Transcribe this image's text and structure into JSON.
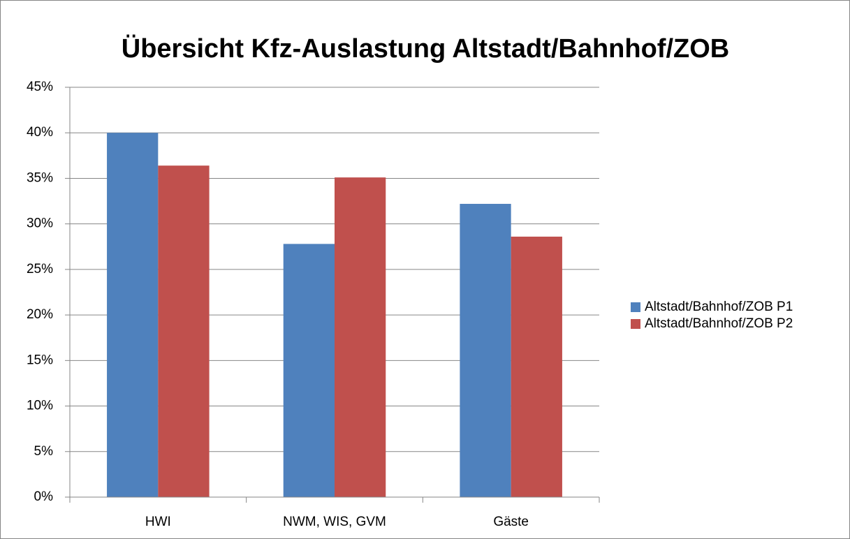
{
  "chart_data": {
    "type": "bar",
    "title": "Übersicht Kfz-Auslastung Altstadt/Bahnhof/ZOB",
    "categories": [
      "HWI",
      "NWM, WIS, GVM",
      "Gäste"
    ],
    "series": [
      {
        "name": "Altstadt/Bahnhof/ZOB P1",
        "color": "#4f81bd",
        "values": [
          40,
          27.8,
          32.2
        ]
      },
      {
        "name": "Altstadt/Bahnhof/ZOB P2",
        "color": "#c0504d",
        "values": [
          36.4,
          35.1,
          28.6
        ]
      }
    ],
    "ylim": [
      0,
      45
    ],
    "yticks": [
      {
        "value": 0,
        "label": "0%"
      },
      {
        "value": 5,
        "label": "5%"
      },
      {
        "value": 10,
        "label": "10%"
      },
      {
        "value": 15,
        "label": "15%"
      },
      {
        "value": 20,
        "label": "20%"
      },
      {
        "value": 25,
        "label": "25%"
      },
      {
        "value": 30,
        "label": "30%"
      },
      {
        "value": 35,
        "label": "35%"
      },
      {
        "value": 40,
        "label": "40%"
      },
      {
        "value": 45,
        "label": "45%"
      }
    ],
    "grid": true,
    "legend": "right"
  }
}
